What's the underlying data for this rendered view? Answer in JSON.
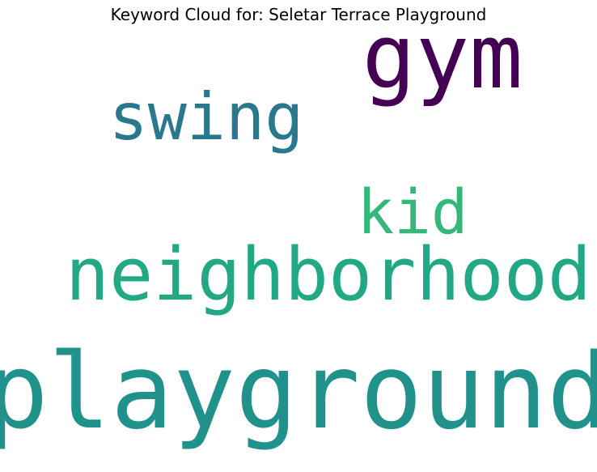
{
  "chart_data": {
    "type": "wordcloud",
    "title": "Keyword Cloud for: Seletar Terrace Playground",
    "words": [
      {
        "text": "playground",
        "weight": 1.0,
        "color": "#21918c"
      },
      {
        "text": "gym",
        "weight": 0.86,
        "color": "#440154"
      },
      {
        "text": "neighborhood",
        "weight": 0.72,
        "color": "#22a884"
      },
      {
        "text": "swing",
        "weight": 0.62,
        "color": "#2a788e"
      },
      {
        "text": "kid",
        "weight": 0.58,
        "color": "#35b779"
      }
    ]
  }
}
